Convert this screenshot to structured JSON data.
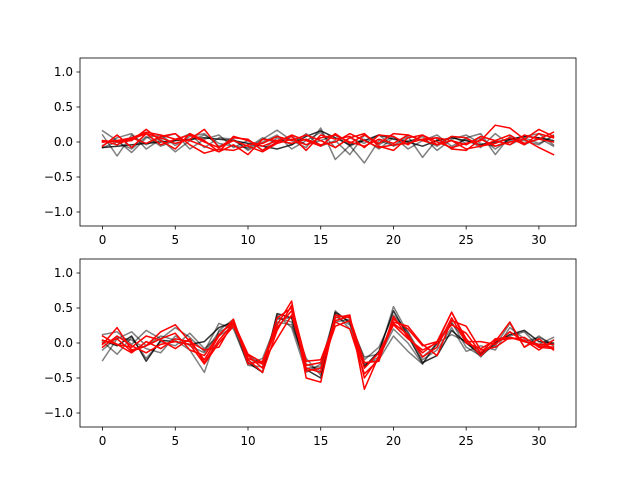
{
  "chart_data": [
    {
      "type": "line",
      "title": "",
      "xlabel": "",
      "ylabel": "",
      "xlim": [
        -1.55,
        32.55
      ],
      "ylim": [
        -1.2,
        1.2
      ],
      "xticks": [
        0,
        5,
        10,
        15,
        20,
        25,
        30
      ],
      "yticks": [
        -1.0,
        -0.5,
        0.0,
        0.5,
        1.0
      ],
      "xtick_labels": [
        "0",
        "5",
        "10",
        "15",
        "20",
        "25",
        "30"
      ],
      "ytick_labels": [
        "−1.0",
        "−0.5",
        "0.0",
        "0.5",
        "1.0"
      ],
      "grid": false,
      "x": [
        0,
        1,
        2,
        3,
        4,
        5,
        6,
        7,
        8,
        9,
        10,
        11,
        12,
        13,
        14,
        15,
        16,
        17,
        18,
        19,
        20,
        21,
        22,
        23,
        24,
        25,
        26,
        27,
        28,
        29,
        30,
        31
      ],
      "series": [
        {
          "color": "#000000",
          "opacity": 0.5,
          "values": [
            0.16,
            0.02,
            -0.15,
            0.06,
            0.1,
            -0.05,
            0.08,
            0.12,
            -0.06,
            0.02,
            -0.1,
            0.04,
            0.17,
            0.02,
            -0.08,
            0.2,
            -0.25,
            -0.05,
            -0.3,
            0.02,
            -0.05,
            0.08,
            -0.22,
            0.04,
            -0.1,
            0.06,
            0.12,
            -0.18,
            0.08,
            -0.04,
            0.06,
            -0.06
          ]
        },
        {
          "color": "#000000",
          "opacity": 0.5,
          "values": [
            0.1,
            -0.2,
            0.1,
            -0.04,
            0.06,
            0.12,
            -0.1,
            0.04,
            0.1,
            -0.08,
            0.02,
            -0.12,
            0.06,
            -0.04,
            0.12,
            -0.06,
            0.02,
            -0.18,
            0.1,
            -0.04,
            0.08,
            -0.1,
            0.02,
            0.1,
            -0.06,
            0.04,
            -0.08,
            0.12,
            -0.04,
            0.06,
            -0.02,
            0.08
          ]
        },
        {
          "color": "#000000",
          "opacity": 0.5,
          "values": [
            -0.05,
            0.06,
            0.12,
            -0.1,
            0.04,
            -0.14,
            0.02,
            0.1,
            -0.02,
            -0.06,
            -0.08,
            0.06,
            -0.02,
            0.08,
            -0.04,
            0.02,
            0.1,
            -0.06,
            0.04,
            -0.1,
            0.06,
            0.0,
            0.08,
            -0.12,
            0.04,
            0.1,
            -0.02,
            -0.06,
            0.02,
            0.08,
            0.12,
            -0.04
          ]
        },
        {
          "color": "#000000",
          "opacity": 0.5,
          "values": [
            -0.08,
            0.0,
            -0.1,
            0.08,
            -0.06,
            0.02,
            0.12,
            -0.08,
            0.06,
            0.04,
            -0.12,
            0.0,
            0.1,
            -0.1,
            0.02,
            0.14,
            -0.08,
            0.06,
            -0.02,
            0.1,
            -0.06,
            0.02,
            0.04,
            -0.06,
            0.08,
            -0.02,
            0.06,
            -0.1,
            0.04,
            0.02,
            -0.04,
            0.1
          ]
        },
        {
          "color": "#000000",
          "opacity": 0.8,
          "values": [
            -0.08,
            -0.06,
            -0.04,
            -0.02,
            0.0,
            0.02,
            0.04,
            0.06,
            0.04,
            0.02,
            -0.02,
            -0.06,
            -0.1,
            -0.04,
            0.08,
            0.16,
            0.06,
            -0.04,
            0.02,
            0.1,
            0.04,
            0.0,
            -0.06,
            0.02,
            0.06,
            0.02,
            -0.04,
            0.0,
            0.04,
            0.08,
            0.06,
            0.02
          ]
        },
        {
          "color": "#ff0000",
          "opacity": 1,
          "values": [
            0.02,
            0.0,
            0.02,
            0.18,
            0.02,
            -0.1,
            0.12,
            0.02,
            -0.14,
            0.08,
            0.02,
            -0.06,
            0.02,
            0.08,
            -0.12,
            0.1,
            0.04,
            0.08,
            -0.08,
            0.1,
            0.08,
            -0.04,
            0.1,
            0.0,
            -0.08,
            -0.02,
            0.02,
            0.24,
            0.2,
            0.04,
            0.18,
            0.08
          ]
        },
        {
          "color": "#ff0000",
          "opacity": 1,
          "values": [
            -0.06,
            0.1,
            -0.08,
            0.12,
            0.06,
            -0.02,
            0.04,
            0.18,
            -0.08,
            0.06,
            0.04,
            -0.12,
            0.0,
            0.1,
            0.02,
            -0.06,
            0.12,
            -0.02,
            0.1,
            -0.02,
            0.12,
            0.1,
            0.02,
            -0.04,
            0.08,
            0.06,
            -0.06,
            0.02,
            0.1,
            -0.02,
            0.04,
            0.14
          ]
        },
        {
          "color": "#ff0000",
          "opacity": 1,
          "values": [
            0.02,
            -0.04,
            0.06,
            -0.02,
            0.08,
            0.12,
            -0.04,
            -0.16,
            -0.1,
            -0.12,
            -0.04,
            -0.02,
            0.08,
            0.02,
            0.1,
            0.02,
            -0.08,
            0.06,
            0.12,
            -0.06,
            -0.12,
            0.06,
            0.1,
            -0.04,
            0.02,
            -0.1,
            -0.06,
            -0.02,
            0.06,
            -0.04,
            0.12,
            0.06
          ]
        },
        {
          "color": "#ff0000",
          "opacity": 1,
          "values": [
            0.0,
            0.02,
            0.04,
            0.12,
            -0.04,
            0.04,
            0.1,
            0.0,
            -0.08,
            0.02,
            -0.06,
            -0.14,
            -0.02,
            0.04,
            -0.04,
            0.06,
            0.1,
            0.0,
            -0.06,
            0.04,
            -0.02,
            0.1,
            0.02,
            0.06,
            -0.1,
            -0.12,
            0.04,
            -0.06,
            0.0,
            0.04,
            -0.08,
            -0.18
          ]
        },
        {
          "color": "#ff0000",
          "opacity": 1,
          "values": [
            0.0,
            0.02,
            0.06,
            0.14,
            0.1,
            0.04,
            0.02,
            -0.06,
            -0.14,
            -0.04,
            -0.18,
            0.04,
            0.02,
            -0.02,
            0.04,
            -0.04,
            0.0,
            0.12,
            0.02,
            -0.08,
            -0.04,
            -0.02,
            0.04,
            0.06,
            0.02,
            -0.04,
            0.08,
            0.02,
            -0.04,
            0.1,
            0.04,
            0.0
          ]
        }
      ]
    },
    {
      "type": "line",
      "title": "",
      "xlabel": "",
      "ylabel": "",
      "xlim": [
        -1.55,
        32.55
      ],
      "ylim": [
        -1.2,
        1.2
      ],
      "xticks": [
        0,
        5,
        10,
        15,
        20,
        25,
        30
      ],
      "yticks": [
        -1.0,
        -0.5,
        0.0,
        0.5,
        1.0
      ],
      "xtick_labels": [
        "0",
        "5",
        "10",
        "15",
        "20",
        "25",
        "30"
      ],
      "ytick_labels": [
        "−1.0",
        "−0.5",
        "0.0",
        "0.5",
        "1.0"
      ],
      "grid": false,
      "x": [
        0,
        1,
        2,
        3,
        4,
        5,
        6,
        7,
        8,
        9,
        10,
        11,
        12,
        13,
        14,
        15,
        16,
        17,
        18,
        19,
        20,
        21,
        22,
        23,
        24,
        25,
        26,
        27,
        28,
        29,
        30,
        31
      ],
      "series": [
        {
          "color": "#000000",
          "opacity": 0.5,
          "values": [
            -0.25,
            0.06,
            0.16,
            -0.04,
            0.1,
            0.04,
            -0.1,
            -0.42,
            0.18,
            0.34,
            -0.24,
            -0.42,
            0.4,
            0.22,
            -0.42,
            -0.3,
            0.42,
            0.2,
            -0.32,
            -0.2,
            0.2,
            0.0,
            -0.3,
            0.02,
            0.3,
            -0.06,
            -0.18,
            -0.02,
            0.16,
            0.02,
            0.08,
            -0.02
          ]
        },
        {
          "color": "#000000",
          "opacity": 0.5,
          "values": [
            0.12,
            0.16,
            -0.02,
            0.18,
            0.06,
            0.22,
            0.08,
            -0.12,
            0.28,
            0.2,
            -0.3,
            -0.22,
            0.3,
            0.26,
            -0.3,
            -0.4,
            0.46,
            0.28,
            -0.2,
            -0.16,
            0.52,
            0.14,
            -0.24,
            -0.1,
            0.22,
            -0.12,
            -0.04,
            -0.1,
            0.22,
            0.06,
            -0.02,
            0.08
          ]
        },
        {
          "color": "#000000",
          "opacity": 0.5,
          "values": [
            0.02,
            -0.16,
            0.08,
            -0.22,
            0.02,
            -0.04,
            0.14,
            -0.08,
            0.1,
            0.24,
            -0.32,
            -0.34,
            0.36,
            0.3,
            -0.36,
            -0.34,
            0.38,
            0.26,
            -0.3,
            -0.24,
            0.1,
            -0.12,
            -0.3,
            0.0,
            0.12,
            0.02,
            -0.2,
            0.02,
            0.1,
            0.16,
            -0.06,
            0.04
          ]
        },
        {
          "color": "#000000",
          "opacity": 0.5,
          "values": [
            -0.1,
            0.08,
            0.04,
            -0.08,
            -0.14,
            0.1,
            -0.04,
            -0.14,
            0.16,
            0.26,
            -0.18,
            -0.3,
            0.34,
            0.36,
            -0.22,
            -0.46,
            0.3,
            0.34,
            -0.24,
            -0.06,
            0.4,
            0.16,
            -0.2,
            -0.02,
            0.28,
            0.04,
            -0.14,
            -0.04,
            0.28,
            -0.06,
            0.1,
            -0.04
          ]
        },
        {
          "color": "#000000",
          "opacity": 0.8,
          "values": [
            0.04,
            -0.04,
            0.1,
            -0.26,
            0.04,
            0.02,
            -0.02,
            0.02,
            0.22,
            0.3,
            -0.28,
            -0.42,
            0.42,
            0.36,
            -0.38,
            -0.5,
            0.44,
            0.3,
            -0.34,
            -0.12,
            0.46,
            0.1,
            -0.28,
            -0.18,
            0.18,
            0.0,
            -0.16,
            0.0,
            0.12,
            0.18,
            0.02,
            0.0
          ]
        },
        {
          "color": "#ff0000",
          "opacity": 1,
          "values": [
            -0.02,
            0.22,
            -0.1,
            -0.04,
            0.16,
            0.26,
            0.02,
            -0.24,
            0.1,
            0.34,
            -0.3,
            -0.26,
            0.26,
            0.6,
            -0.5,
            -0.56,
            0.36,
            0.4,
            -0.66,
            -0.18,
            0.26,
            0.06,
            -0.1,
            0.0,
            0.44,
            0.06,
            -0.18,
            0.02,
            0.3,
            -0.06,
            0.06,
            -0.1
          ]
        },
        {
          "color": "#ff0000",
          "opacity": 1,
          "values": [
            0.1,
            -0.02,
            -0.06,
            0.1,
            0.04,
            -0.08,
            0.06,
            -0.28,
            0.04,
            0.28,
            -0.24,
            -0.42,
            0.18,
            0.54,
            -0.26,
            -0.24,
            0.3,
            0.2,
            -0.44,
            -0.24,
            0.3,
            0.24,
            -0.02,
            -0.18,
            0.32,
            0.24,
            -0.1,
            -0.06,
            0.08,
            0.04,
            -0.1,
            0.04
          ]
        },
        {
          "color": "#ff0000",
          "opacity": 1,
          "values": [
            0.0,
            0.06,
            -0.12,
            -0.04,
            0.06,
            0.14,
            -0.1,
            -0.18,
            0.12,
            0.3,
            -0.16,
            -0.28,
            0.06,
            0.4,
            -0.32,
            -0.28,
            0.32,
            0.38,
            -0.5,
            -0.2,
            0.34,
            0.2,
            -0.04,
            0.02,
            0.44,
            0.02,
            0.02,
            -0.02,
            0.16,
            0.02,
            -0.04,
            -0.06
          ]
        },
        {
          "color": "#ff0000",
          "opacity": 1,
          "values": [
            0.04,
            -0.02,
            -0.14,
            0.02,
            -0.08,
            0.06,
            0.02,
            -0.1,
            -0.06,
            0.3,
            -0.22,
            -0.3,
            0.22,
            0.46,
            -0.36,
            -0.42,
            0.4,
            0.36,
            -0.28,
            -0.26,
            0.38,
            0.08,
            -0.14,
            0.02,
            0.26,
            0.14,
            -0.14,
            0.06,
            0.08,
            0.02,
            -0.02,
            -0.02
          ]
        },
        {
          "color": "#ff0000",
          "opacity": 1,
          "values": [
            -0.06,
            0.1,
            -0.04,
            -0.14,
            -0.02,
            0.02,
            -0.02,
            -0.3,
            0.0,
            0.24,
            -0.18,
            -0.36,
            0.36,
            0.5,
            -0.4,
            -0.36,
            0.24,
            0.32,
            -0.36,
            -0.14,
            0.28,
            0.12,
            -0.2,
            -0.06,
            0.36,
            0.0,
            -0.08,
            0.04,
            0.06,
            0.08,
            -0.06,
            -0.08
          ]
        }
      ]
    }
  ]
}
